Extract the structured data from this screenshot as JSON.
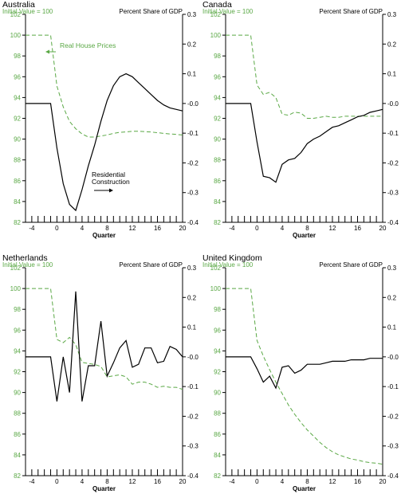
{
  "colors": {
    "house": "#5aa845",
    "construction": "#000000",
    "axis": "#000000"
  },
  "chart_data": [
    {
      "type": "line",
      "title": "Australia",
      "left_axis_label": "Initial Value = 100",
      "right_axis_label": "Percent Share of GDP",
      "xlabel": "Quarter",
      "xlim": [
        -5,
        20
      ],
      "x_ticks": [
        -4,
        0,
        4,
        8,
        12,
        16,
        20
      ],
      "ylim_left": [
        82,
        102
      ],
      "y_ticks_left": [
        82,
        84,
        86,
        88,
        90,
        92,
        94,
        96,
        98,
        100,
        102
      ],
      "ylim_right": [
        -0.4,
        0.3
      ],
      "y_ticks_right": [
        "0.3",
        "0.2",
        "0.1",
        "-0.0",
        "-0.1",
        "-0.2",
        "-0.3",
        "-0.4"
      ],
      "annotations": [
        "Real House Prices",
        "Residential",
        "Construction"
      ],
      "series": [
        {
          "axis": "left",
          "style": "dashed",
          "x": [
            -5,
            -4,
            -3,
            -2,
            -1,
            0,
            1,
            2,
            3,
            4,
            5,
            6,
            7,
            8,
            9,
            10,
            11,
            12,
            13,
            14,
            15,
            16,
            17,
            18,
            19,
            20
          ],
          "values": [
            100,
            100,
            100,
            100,
            100,
            95.1,
            93.1,
            91.7,
            91.0,
            90.5,
            90.2,
            90.2,
            90.3,
            90.4,
            90.55,
            90.65,
            90.7,
            90.75,
            90.75,
            90.72,
            90.68,
            90.62,
            90.55,
            90.5,
            90.45,
            90.4
          ]
        },
        {
          "axis": "right",
          "style": "solid",
          "x": [
            -5,
            -4,
            -3,
            -2,
            -1,
            0,
            1,
            2,
            3,
            4,
            5,
            6,
            7,
            8,
            9,
            10,
            11,
            12,
            13,
            14,
            15,
            16,
            17,
            18,
            19,
            20
          ],
          "values": [
            0.0,
            0.0,
            0.0,
            0.0,
            0.0,
            -0.15,
            -0.27,
            -0.34,
            -0.36,
            -0.29,
            -0.21,
            -0.14,
            -0.06,
            0.01,
            0.06,
            0.09,
            0.1,
            0.09,
            0.07,
            0.05,
            0.03,
            0.01,
            -0.005,
            -0.015,
            -0.02,
            -0.025
          ]
        }
      ]
    },
    {
      "type": "line",
      "title": "Canada",
      "left_axis_label": "Initial Value = 100",
      "right_axis_label": "Percent Share of GDP",
      "xlabel": "Quarter",
      "xlim": [
        -5,
        20
      ],
      "x_ticks": [
        -4,
        0,
        4,
        8,
        12,
        16,
        20
      ],
      "ylim_left": [
        82,
        102
      ],
      "y_ticks_left": [
        82,
        84,
        86,
        88,
        90,
        92,
        94,
        96,
        98,
        100,
        102
      ],
      "ylim_right": [
        -0.4,
        0.3
      ],
      "y_ticks_right": [
        "0.3",
        "0.2",
        "0.1",
        "-0.0",
        "-0.1",
        "-0.2",
        "-0.3",
        "-0.4"
      ],
      "annotations": [],
      "series": [
        {
          "axis": "left",
          "style": "dashed",
          "x": [
            -5,
            -4,
            -3,
            -2,
            -1,
            0,
            1,
            2,
            3,
            4,
            5,
            6,
            7,
            8,
            9,
            10,
            11,
            12,
            13,
            14,
            15,
            16,
            17,
            18,
            19,
            20
          ],
          "values": [
            100,
            100,
            100,
            100,
            100,
            95.2,
            94.3,
            94.5,
            94.0,
            92.4,
            92.3,
            92.6,
            92.5,
            92.0,
            92.0,
            92.1,
            92.2,
            92.1,
            92.1,
            92.2,
            92.2,
            92.2,
            92.2,
            92.2,
            92.2,
            92.2
          ]
        },
        {
          "axis": "right",
          "style": "solid",
          "x": [
            -5,
            -4,
            -3,
            -2,
            -1,
            0,
            1,
            2,
            3,
            4,
            5,
            6,
            7,
            8,
            9,
            10,
            11,
            12,
            13,
            14,
            15,
            16,
            17,
            18,
            19,
            20
          ],
          "values": [
            0.0,
            0.0,
            0.0,
            0.0,
            0.0,
            -0.13,
            -0.245,
            -0.25,
            -0.265,
            -0.205,
            -0.19,
            -0.185,
            -0.165,
            -0.135,
            -0.12,
            -0.11,
            -0.095,
            -0.08,
            -0.075,
            -0.065,
            -0.055,
            -0.045,
            -0.04,
            -0.03,
            -0.025,
            -0.02
          ]
        }
      ]
    },
    {
      "type": "line",
      "title": "Netherlands",
      "left_axis_label": "Initial Value = 100",
      "right_axis_label": "Percent Share of GDP",
      "xlabel": "Quarter",
      "xlim": [
        -5,
        20
      ],
      "x_ticks": [
        -4,
        0,
        4,
        8,
        12,
        16,
        20
      ],
      "ylim_left": [
        82,
        102
      ],
      "y_ticks_left": [
        82,
        84,
        86,
        88,
        90,
        92,
        94,
        96,
        98,
        100,
        102
      ],
      "ylim_right": [
        -0.4,
        0.3
      ],
      "y_ticks_right": [
        "0.3",
        "0.2",
        "0.1",
        "-0.0",
        "-0.1",
        "-0.2",
        "-0.3",
        "-0.4"
      ],
      "annotations": [],
      "series": [
        {
          "axis": "left",
          "style": "dashed",
          "x": [
            -5,
            -4,
            -3,
            -2,
            -1,
            0,
            1,
            2,
            3,
            4,
            5,
            6,
            7,
            8,
            9,
            10,
            11,
            12,
            13,
            14,
            15,
            16,
            17,
            18,
            19,
            20
          ],
          "values": [
            100,
            100,
            100,
            100,
            100,
            95.1,
            94.8,
            95.3,
            94.6,
            92.9,
            92.8,
            92.7,
            92.5,
            91.5,
            91.6,
            91.7,
            91.5,
            90.8,
            91.0,
            91.0,
            90.8,
            90.5,
            90.6,
            90.5,
            90.5,
            90.3
          ]
        },
        {
          "axis": "right",
          "style": "solid",
          "x": [
            -5,
            -4,
            -3,
            -2,
            -1,
            0,
            1,
            2,
            3,
            4,
            5,
            6,
            7,
            8,
            9,
            10,
            11,
            12,
            13,
            14,
            15,
            16,
            17,
            18,
            19,
            20
          ],
          "values": [
            0.0,
            0.0,
            0.0,
            0.0,
            0.0,
            -0.15,
            0.0,
            -0.12,
            0.22,
            -0.15,
            -0.03,
            -0.03,
            0.12,
            -0.065,
            -0.02,
            0.03,
            0.055,
            -0.035,
            -0.025,
            0.03,
            0.03,
            -0.02,
            -0.015,
            0.035,
            0.025,
            0.0
          ]
        }
      ]
    },
    {
      "type": "line",
      "title": "United Kingdom",
      "left_axis_label": "Initial Value = 100",
      "right_axis_label": "Percent Share of GDP",
      "xlabel": "Quarter",
      "xlim": [
        -5,
        20
      ],
      "x_ticks": [
        -4,
        0,
        4,
        8,
        12,
        16,
        20
      ],
      "ylim_left": [
        82,
        102
      ],
      "y_ticks_left": [
        82,
        84,
        86,
        88,
        90,
        92,
        94,
        96,
        98,
        100,
        102
      ],
      "ylim_right": [
        -0.4,
        0.3
      ],
      "y_ticks_right": [
        "0.3",
        "0.2",
        "0.1",
        "-0.0",
        "-0.1",
        "-0.2",
        "-0.3",
        "-0.4"
      ],
      "annotations": [],
      "series": [
        {
          "axis": "left",
          "style": "dashed",
          "x": [
            -5,
            -4,
            -3,
            -2,
            -1,
            0,
            1,
            2,
            3,
            4,
            5,
            6,
            7,
            8,
            9,
            10,
            11,
            12,
            13,
            14,
            15,
            16,
            17,
            18,
            19,
            20
          ],
          "values": [
            100,
            100,
            100,
            100,
            100,
            95.0,
            93.5,
            92.2,
            91.0,
            89.9,
            88.8,
            87.9,
            87.1,
            86.4,
            85.8,
            85.2,
            84.7,
            84.3,
            84.0,
            83.8,
            83.6,
            83.5,
            83.35,
            83.25,
            83.2,
            83.1
          ]
        },
        {
          "axis": "right",
          "style": "solid",
          "x": [
            -5,
            -4,
            -3,
            -2,
            -1,
            0,
            1,
            2,
            3,
            4,
            5,
            6,
            7,
            8,
            9,
            10,
            11,
            12,
            13,
            14,
            15,
            16,
            17,
            18,
            19,
            20
          ],
          "values": [
            0.0,
            0.0,
            0.0,
            0.0,
            0.0,
            -0.04,
            -0.085,
            -0.065,
            -0.105,
            -0.035,
            -0.03,
            -0.055,
            -0.045,
            -0.025,
            -0.025,
            -0.025,
            -0.02,
            -0.015,
            -0.015,
            -0.015,
            -0.01,
            -0.01,
            -0.01,
            -0.005,
            -0.005,
            -0.005
          ]
        }
      ]
    }
  ]
}
